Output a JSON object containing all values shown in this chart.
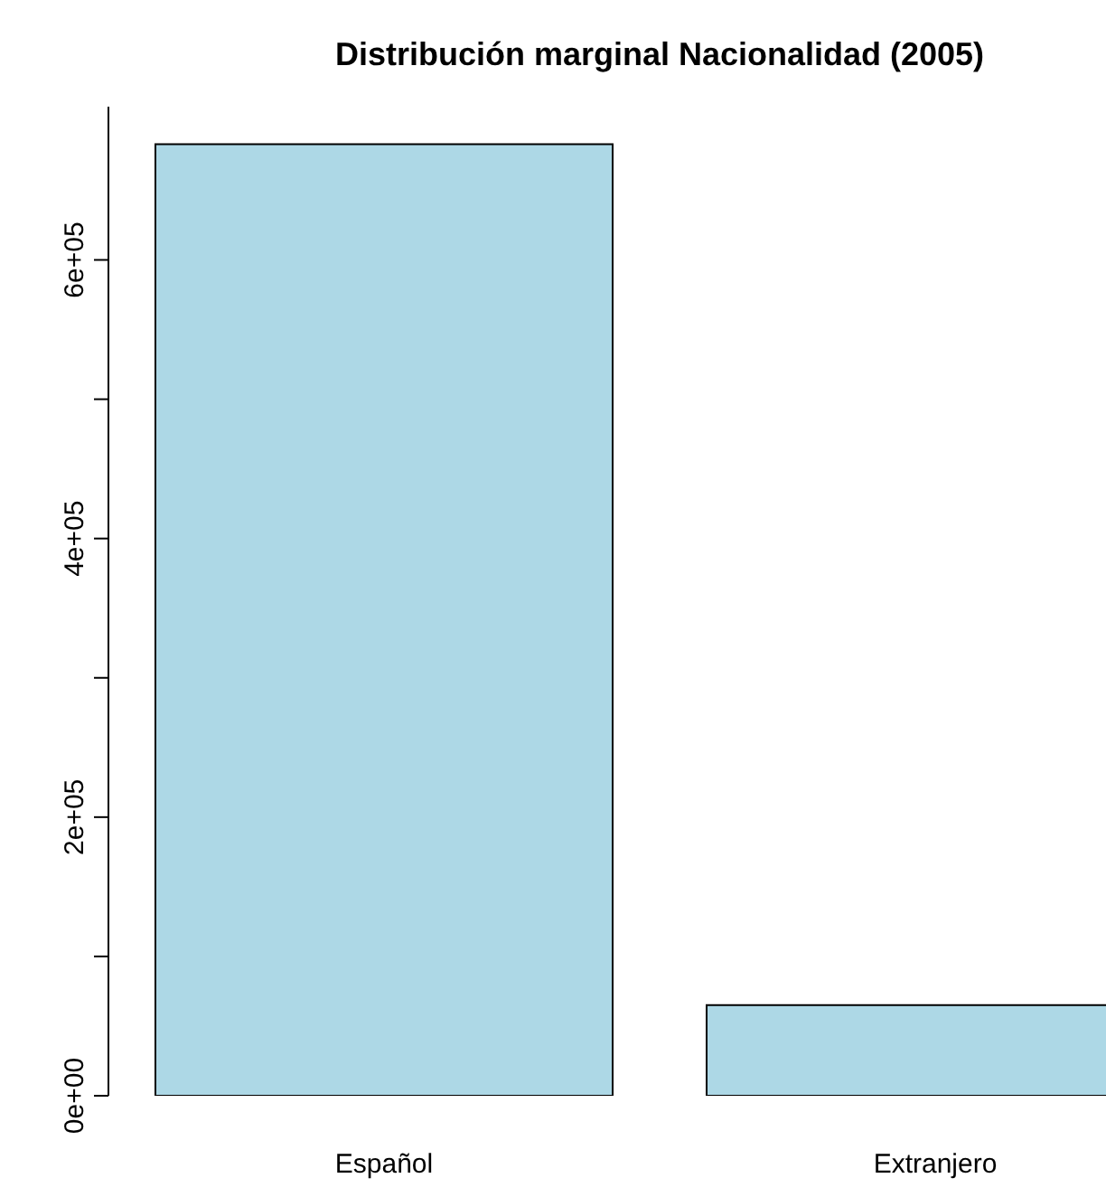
{
  "chart_data": {
    "type": "bar",
    "title": "Distribución marginal Nacionalidad (2005)",
    "categories": [
      "Español",
      "Extranjero"
    ],
    "values": [
      683000,
      65000
    ],
    "color": "#add8e6",
    "ylim": [
      0,
      710000
    ],
    "yticks": [
      {
        "value": 0,
        "label": "0e+00"
      },
      {
        "value": 100000,
        "label": null
      },
      {
        "value": 200000,
        "label": "2e+05"
      },
      {
        "value": 300000,
        "label": null
      },
      {
        "value": 400000,
        "label": "4e+05"
      },
      {
        "value": 500000,
        "label": null
      },
      {
        "value": 600000,
        "label": "6e+05"
      }
    ],
    "grid": false,
    "legend": false
  }
}
